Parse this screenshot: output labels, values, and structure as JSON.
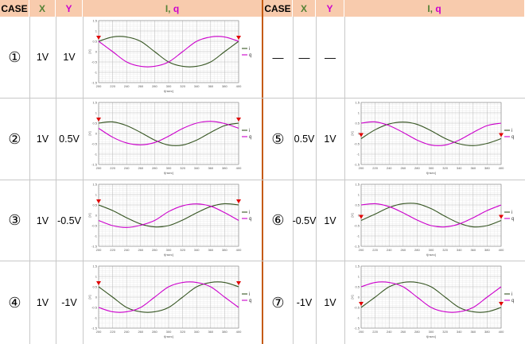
{
  "headers": {
    "case": "CASE",
    "x": "X",
    "y": "Y",
    "iq_i": "I",
    "iq_sep": ", ",
    "iq_q": "q"
  },
  "colors": {
    "header_bg": "#f8cbad",
    "x_header": "#548235",
    "y_header": "#cc00cc",
    "i_line": "#375623",
    "q_line": "#cc00cc",
    "marker": "#e00000",
    "divider": "#c55a11"
  },
  "left_rows": [
    {
      "case": "①",
      "x": "1V",
      "y": "1V"
    },
    {
      "case": "②",
      "x": "1V",
      "y": "0.5V"
    },
    {
      "case": "③",
      "x": "1V",
      "y": "-0.5V"
    },
    {
      "case": "④",
      "x": "1V",
      "y": "-1V"
    }
  ],
  "right_rows": [
    {
      "case": "",
      "x": "—",
      "y": "—",
      "dash": "—"
    },
    {
      "case": "⑤",
      "x": "0.5V",
      "y": "1V"
    },
    {
      "case": "⑥",
      "x": "-0.5V",
      "y": "1V"
    },
    {
      "case": "⑦",
      "x": "-1V",
      "y": "1V"
    }
  ],
  "chart_common": {
    "xlabel": "t[nsec]",
    "ylabel": "[V]",
    "xticks": [
      "200",
      "220",
      "240",
      "260",
      "280",
      "300",
      "320",
      "340",
      "360",
      "380",
      "400"
    ],
    "yticks": [
      "1.5",
      "1",
      "0.5",
      "0",
      "-0.5",
      "-1",
      "-1.5"
    ],
    "legend_i": "i",
    "legend_q": "q"
  },
  "chart_data": [
    {
      "type": "line",
      "case": "①",
      "xlim": [
        200,
        400
      ],
      "ylim": [
        -1.5,
        1.5
      ],
      "period_ns": 200,
      "x": [
        200,
        220,
        240,
        260,
        280,
        300,
        320,
        340,
        360,
        380,
        400
      ],
      "series": [
        {
          "name": "i",
          "values": [
            0.5,
            0.71,
            0.71,
            0.5,
            0.0,
            -0.5,
            -0.71,
            -0.71,
            -0.5,
            0.0,
            0.5
          ]
        },
        {
          "name": "q",
          "values": [
            0.5,
            0.0,
            -0.5,
            -0.71,
            -0.71,
            -0.5,
            0.0,
            0.5,
            0.71,
            0.71,
            0.5
          ]
        }
      ]
    },
    {
      "type": "line",
      "case": "②",
      "xlim": [
        200,
        400
      ],
      "ylim": [
        -1.5,
        1.5
      ],
      "period_ns": 200,
      "x": [
        200,
        220,
        240,
        260,
        280,
        300,
        320,
        340,
        360,
        380,
        400
      ],
      "series": [
        {
          "name": "i",
          "values": [
            0.5,
            0.56,
            0.38,
            0.05,
            -0.32,
            -0.56,
            -0.56,
            -0.32,
            0.05,
            0.38,
            0.5
          ]
        },
        {
          "name": "q",
          "values": [
            0.25,
            -0.18,
            -0.46,
            -0.55,
            -0.44,
            -0.13,
            0.24,
            0.5,
            0.59,
            0.48,
            0.25
          ]
        }
      ]
    },
    {
      "type": "line",
      "case": "③",
      "xlim": [
        200,
        400
      ],
      "ylim": [
        -1.5,
        1.5
      ],
      "period_ns": 200,
      "x": [
        200,
        220,
        240,
        260,
        280,
        300,
        320,
        340,
        360,
        380,
        400
      ],
      "series": [
        {
          "name": "i",
          "values": [
            0.5,
            0.23,
            -0.12,
            -0.42,
            -0.56,
            -0.5,
            -0.23,
            0.12,
            0.42,
            0.56,
            0.5
          ]
        },
        {
          "name": "q",
          "values": [
            -0.25,
            -0.5,
            -0.59,
            -0.48,
            -0.25,
            0.18,
            0.46,
            0.55,
            0.44,
            0.13,
            -0.25
          ]
        }
      ]
    },
    {
      "type": "line",
      "case": "④",
      "xlim": [
        200,
        400
      ],
      "ylim": [
        -1.5,
        1.5
      ],
      "period_ns": 200,
      "x": [
        200,
        220,
        240,
        260,
        280,
        300,
        320,
        340,
        360,
        380,
        400
      ],
      "series": [
        {
          "name": "i",
          "values": [
            0.5,
            0.0,
            -0.5,
            -0.71,
            -0.71,
            -0.5,
            0.0,
            0.5,
            0.71,
            0.71,
            0.5
          ]
        },
        {
          "name": "q",
          "values": [
            -0.5,
            -0.71,
            -0.71,
            -0.5,
            0.0,
            0.5,
            0.71,
            0.71,
            0.5,
            0.0,
            -0.5
          ]
        }
      ]
    },
    {
      "type": "line",
      "case": "⑤",
      "xlim": [
        200,
        400
      ],
      "ylim": [
        -1.5,
        1.5
      ],
      "period_ns": 200,
      "x": [
        200,
        220,
        240,
        260,
        280,
        300,
        320,
        340,
        360,
        380,
        400
      ],
      "series": [
        {
          "name": "i",
          "values": [
            -0.25,
            0.18,
            0.46,
            0.55,
            0.44,
            0.13,
            -0.24,
            -0.5,
            -0.59,
            -0.48,
            -0.25
          ]
        },
        {
          "name": "q",
          "values": [
            0.5,
            0.56,
            0.38,
            0.05,
            -0.32,
            -0.56,
            -0.56,
            -0.32,
            0.05,
            0.38,
            0.5
          ]
        }
      ]
    },
    {
      "type": "line",
      "case": "⑥",
      "xlim": [
        200,
        400
      ],
      "ylim": [
        -1.5,
        1.5
      ],
      "period_ns": 200,
      "x": [
        200,
        220,
        240,
        260,
        280,
        300,
        320,
        340,
        360,
        380,
        400
      ],
      "series": [
        {
          "name": "i",
          "values": [
            -0.25,
            0.06,
            0.38,
            0.56,
            0.56,
            0.32,
            -0.05,
            -0.38,
            -0.56,
            -0.5,
            -0.25
          ]
        },
        {
          "name": "q",
          "values": [
            0.5,
            0.56,
            0.42,
            0.12,
            -0.23,
            -0.5,
            -0.56,
            -0.42,
            -0.12,
            0.23,
            0.5
          ]
        }
      ]
    },
    {
      "type": "line",
      "case": "⑦",
      "xlim": [
        200,
        400
      ],
      "ylim": [
        -1.5,
        1.5
      ],
      "period_ns": 200,
      "x": [
        200,
        220,
        240,
        260,
        280,
        300,
        320,
        340,
        360,
        380,
        400
      ],
      "series": [
        {
          "name": "i",
          "values": [
            -0.5,
            0.0,
            0.5,
            0.71,
            0.71,
            0.5,
            0.0,
            -0.5,
            -0.71,
            -0.71,
            -0.5
          ]
        },
        {
          "name": "q",
          "values": [
            0.5,
            0.71,
            0.71,
            0.5,
            0.0,
            -0.5,
            -0.71,
            -0.71,
            -0.5,
            0.0,
            0.5
          ]
        }
      ]
    }
  ]
}
